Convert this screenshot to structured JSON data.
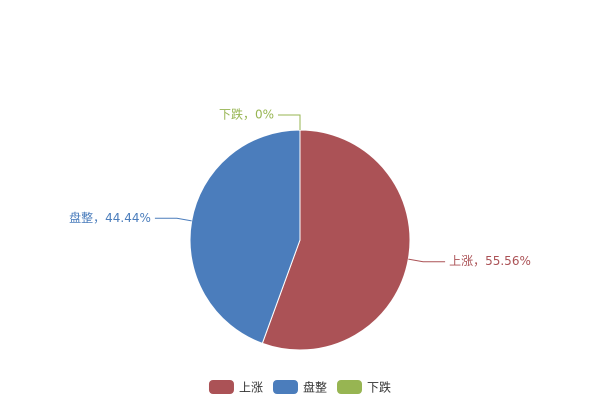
{
  "chart_data": {
    "type": "pie",
    "categories": [
      "上涨",
      "盘整",
      "下跌"
    ],
    "values": [
      55.56,
      44.44,
      0
    ],
    "value_labels": [
      "上涨，55.56%",
      "盘整，44.44%",
      "下跌，0%"
    ],
    "colors": [
      "#ab5256",
      "#4b7dbc",
      "#97b552"
    ],
    "legend": "bottom"
  }
}
